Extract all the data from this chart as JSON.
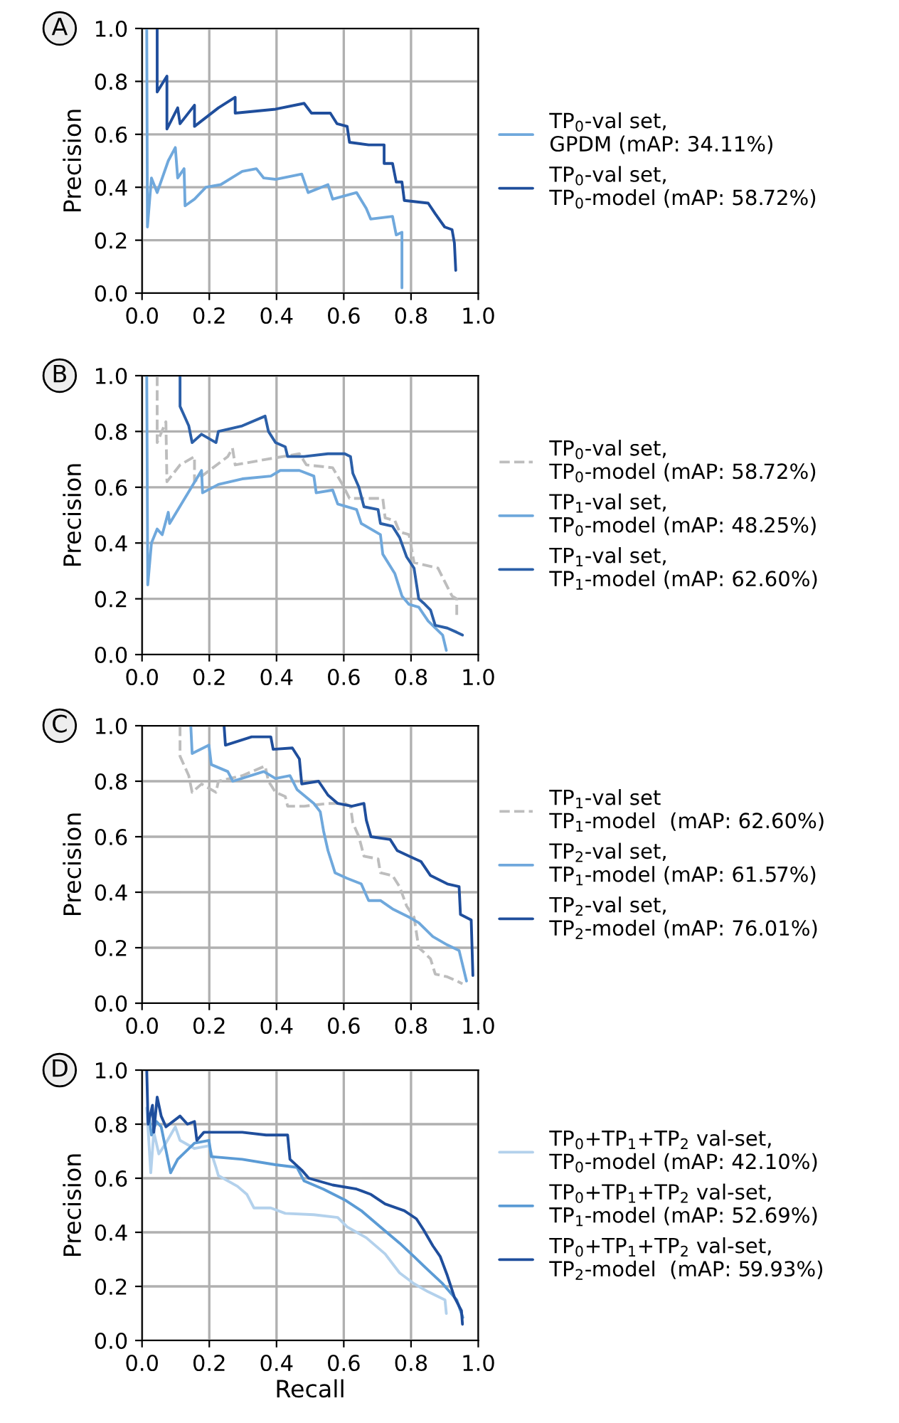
{
  "chart_data": [
    {
      "type": "line",
      "ylabel": "Precision",
      "annotations": [
        "A"
      ],
      "xlim": [
        0,
        1
      ],
      "ylim": [
        0,
        1
      ],
      "xticks": [
        {
          "value": 0,
          "label": "0.0"
        },
        {
          "value": 0.2,
          "label": "0.2"
        },
        {
          "value": 0.4,
          "label": "0.4"
        },
        {
          "value": 0.6,
          "label": "0.6"
        },
        {
          "value": 0.8,
          "label": "0.8"
        },
        {
          "value": 1,
          "label": "1.0"
        }
      ],
      "yticks": [
        {
          "value": 0,
          "label": "0.0"
        },
        {
          "value": 0.2,
          "label": "0.2"
        },
        {
          "value": 0.4,
          "label": "0.4"
        },
        {
          "value": 0.6,
          "label": "0.6"
        },
        {
          "value": 0.8,
          "label": "0.8"
        },
        {
          "value": 1,
          "label": "1.0"
        }
      ],
      "grid": true,
      "legend": "right",
      "series": [
        {
          "name": "TP$_{0}$-val set,\nGPDM (mAP: 34.11%)",
          "color": "#6fa8dc",
          "x": [
            0.014,
            0.016,
            0.028,
            0.045,
            0.078,
            0.099,
            0.106,
            0.125,
            0.128,
            0.156,
            0.19,
            0.234,
            0.298,
            0.34,
            0.362,
            0.397,
            0.475,
            0.494,
            0.553,
            0.567,
            0.638,
            0.667,
            0.68,
            0.745,
            0.756,
            0.773,
            0.773
          ],
          "values": [
            1.0,
            0.25,
            0.435,
            0.38,
            0.5,
            0.55,
            0.435,
            0.47,
            0.33,
            0.355,
            0.4,
            0.41,
            0.46,
            0.47,
            0.435,
            0.43,
            0.45,
            0.38,
            0.41,
            0.355,
            0.38,
            0.32,
            0.28,
            0.29,
            0.22,
            0.23,
            0.02
          ]
        },
        {
          "name": "TP$_{0}$-val set,\nTP$_{0}$-model (mAP: 58.72%)",
          "color": "#1f4e9c",
          "x": [
            0.045,
            0.045,
            0.074,
            0.074,
            0.106,
            0.113,
            0.156,
            0.156,
            0.227,
            0.277,
            0.277,
            0.397,
            0.482,
            0.504,
            0.56,
            0.58,
            0.61,
            0.617,
            0.674,
            0.72,
            0.72,
            0.745,
            0.756,
            0.773,
            0.78,
            0.851,
            0.872,
            0.9,
            0.922,
            0.929,
            0.933
          ],
          "values": [
            1.0,
            0.76,
            0.82,
            0.62,
            0.7,
            0.64,
            0.71,
            0.63,
            0.7,
            0.74,
            0.68,
            0.695,
            0.717,
            0.68,
            0.68,
            0.64,
            0.63,
            0.57,
            0.56,
            0.56,
            0.49,
            0.49,
            0.42,
            0.42,
            0.35,
            0.34,
            0.3,
            0.25,
            0.24,
            0.19,
            0.086
          ]
        }
      ]
    },
    {
      "type": "line",
      "ylabel": "Precision",
      "annotations": [
        "B"
      ],
      "xlim": [
        0,
        1
      ],
      "ylim": [
        0,
        1
      ],
      "xticks": [
        {
          "value": 0,
          "label": "0.0"
        },
        {
          "value": 0.2,
          "label": "0.2"
        },
        {
          "value": 0.4,
          "label": "0.4"
        },
        {
          "value": 0.6,
          "label": "0.6"
        },
        {
          "value": 0.8,
          "label": "0.8"
        },
        {
          "value": 1,
          "label": "1.0"
        }
      ],
      "yticks": [
        {
          "value": 0,
          "label": "0.0"
        },
        {
          "value": 0.2,
          "label": "0.2"
        },
        {
          "value": 0.4,
          "label": "0.4"
        },
        {
          "value": 0.6,
          "label": "0.6"
        },
        {
          "value": 0.8,
          "label": "0.8"
        },
        {
          "value": 1,
          "label": "1.0"
        }
      ],
      "grid": true,
      "legend": "right",
      "series": [
        {
          "name": "TP$_{0}$-val set,\nTP$_{0}$-model (mAP: 58.72%)",
          "color": "#bdbdbd",
          "line_style": "dashed",
          "x": [
            0.045,
            0.045,
            0.071,
            0.074,
            0.113,
            0.156,
            0.156,
            0.255,
            0.269,
            0.277,
            0.369,
            0.468,
            0.489,
            0.567,
            0.596,
            0.617,
            0.716,
            0.723,
            0.752,
            0.766,
            0.794,
            0.809,
            0.88,
            0.901,
            0.922,
            0.936,
            0.936
          ],
          "values": [
            1.0,
            0.76,
            0.835,
            0.62,
            0.68,
            0.71,
            0.62,
            0.71,
            0.74,
            0.68,
            0.7,
            0.72,
            0.68,
            0.67,
            0.61,
            0.56,
            0.56,
            0.49,
            0.48,
            0.44,
            0.43,
            0.33,
            0.31,
            0.26,
            0.21,
            0.2,
            0.13
          ]
        },
        {
          "name": "TP$_{1}$-val set,\nTP$_{0}$-model (mAP: 48.25%)",
          "color": "#6fa8dc",
          "x": [
            0.014,
            0.017,
            0.028,
            0.045,
            0.06,
            0.078,
            0.082,
            0.142,
            0.177,
            0.18,
            0.227,
            0.298,
            0.383,
            0.411,
            0.468,
            0.511,
            0.518,
            0.567,
            0.582,
            0.638,
            0.652,
            0.709,
            0.716,
            0.752,
            0.773,
            0.794,
            0.823,
            0.851,
            0.894,
            0.905
          ],
          "values": [
            1.0,
            0.25,
            0.4,
            0.45,
            0.43,
            0.51,
            0.47,
            0.59,
            0.66,
            0.58,
            0.61,
            0.63,
            0.64,
            0.66,
            0.66,
            0.64,
            0.58,
            0.59,
            0.54,
            0.52,
            0.47,
            0.43,
            0.36,
            0.29,
            0.21,
            0.18,
            0.17,
            0.12,
            0.07,
            0.015
          ]
        },
        {
          "name": "TP$_{1}$-val set,\nTP$_{1}$-model (mAP: 62.60%)",
          "color": "#2b5fa8",
          "x": [
            0.113,
            0.113,
            0.139,
            0.149,
            0.177,
            0.22,
            0.227,
            0.298,
            0.366,
            0.376,
            0.397,
            0.426,
            0.433,
            0.482,
            0.553,
            0.603,
            0.62,
            0.627,
            0.645,
            0.66,
            0.702,
            0.709,
            0.745,
            0.766,
            0.787,
            0.809,
            0.823,
            0.837,
            0.858,
            0.872,
            0.908,
            0.936,
            0.953
          ],
          "values": [
            1.0,
            0.89,
            0.82,
            0.76,
            0.79,
            0.76,
            0.8,
            0.82,
            0.855,
            0.8,
            0.76,
            0.745,
            0.71,
            0.71,
            0.72,
            0.72,
            0.71,
            0.65,
            0.6,
            0.53,
            0.52,
            0.47,
            0.46,
            0.42,
            0.35,
            0.31,
            0.2,
            0.185,
            0.16,
            0.105,
            0.095,
            0.08,
            0.07
          ]
        }
      ]
    },
    {
      "type": "line",
      "ylabel": "Precision",
      "annotations": [
        "C"
      ],
      "xlim": [
        0,
        1
      ],
      "ylim": [
        0,
        1
      ],
      "xticks": [
        {
          "value": 0,
          "label": "0.0"
        },
        {
          "value": 0.2,
          "label": "0.2"
        },
        {
          "value": 0.4,
          "label": "0.4"
        },
        {
          "value": 0.6,
          "label": "0.6"
        },
        {
          "value": 0.8,
          "label": "0.8"
        },
        {
          "value": 1,
          "label": "1.0"
        }
      ],
      "yticks": [
        {
          "value": 0,
          "label": "0.0"
        },
        {
          "value": 0.2,
          "label": "0.2"
        },
        {
          "value": 0.4,
          "label": "0.4"
        },
        {
          "value": 0.6,
          "label": "0.6"
        },
        {
          "value": 0.8,
          "label": "0.8"
        },
        {
          "value": 1,
          "label": "1.0"
        }
      ],
      "grid": true,
      "legend": "right",
      "series": [
        {
          "name": "TP$_{1}$-val set\nTP$_{1}$-model  (mAP: 62.60%)",
          "color": "#bdbdbd",
          "line_style": "dashed",
          "x": [
            0.113,
            0.113,
            0.139,
            0.149,
            0.177,
            0.22,
            0.227,
            0.298,
            0.366,
            0.376,
            0.397,
            0.426,
            0.433,
            0.482,
            0.553,
            0.603,
            0.62,
            0.627,
            0.645,
            0.66,
            0.702,
            0.709,
            0.745,
            0.766,
            0.787,
            0.809,
            0.823,
            0.837,
            0.858,
            0.872,
            0.908,
            0.936,
            0.953
          ],
          "values": [
            1.0,
            0.89,
            0.82,
            0.76,
            0.79,
            0.76,
            0.8,
            0.82,
            0.855,
            0.8,
            0.76,
            0.745,
            0.71,
            0.71,
            0.72,
            0.72,
            0.71,
            0.65,
            0.6,
            0.53,
            0.52,
            0.47,
            0.46,
            0.42,
            0.35,
            0.31,
            0.2,
            0.185,
            0.16,
            0.105,
            0.095,
            0.08,
            0.07
          ]
        },
        {
          "name": "TP$_{2}$-val set,\nTP$_{1}$-model (mAP: 61.57%)",
          "color": "#6fa8dc",
          "x": [
            0.145,
            0.149,
            0.199,
            0.206,
            0.255,
            0.27,
            0.362,
            0.397,
            0.44,
            0.461,
            0.511,
            0.53,
            0.54,
            0.553,
            0.574,
            0.61,
            0.652,
            0.674,
            0.709,
            0.745,
            0.794,
            0.823,
            0.865,
            0.908,
            0.943,
            0.965
          ],
          "values": [
            1.0,
            0.9,
            0.93,
            0.86,
            0.835,
            0.8,
            0.835,
            0.81,
            0.82,
            0.77,
            0.72,
            0.69,
            0.62,
            0.55,
            0.47,
            0.45,
            0.43,
            0.37,
            0.37,
            0.34,
            0.31,
            0.29,
            0.24,
            0.21,
            0.19,
            0.08
          ]
        },
        {
          "name": "TP$_{2}$-val set,\nTP$_{2}$-model (mAP: 76.01%)",
          "color": "#1f4e9c",
          "x": [
            0.244,
            0.248,
            0.326,
            0.383,
            0.39,
            0.447,
            0.468,
            0.475,
            0.525,
            0.553,
            0.582,
            0.624,
            0.66,
            0.667,
            0.681,
            0.738,
            0.759,
            0.794,
            0.83,
            0.858,
            0.908,
            0.943,
            0.947,
            0.979,
            0.984
          ],
          "values": [
            1.0,
            0.93,
            0.96,
            0.96,
            0.915,
            0.92,
            0.88,
            0.79,
            0.8,
            0.75,
            0.72,
            0.71,
            0.72,
            0.66,
            0.6,
            0.59,
            0.55,
            0.53,
            0.51,
            0.46,
            0.43,
            0.42,
            0.32,
            0.3,
            0.1
          ]
        }
      ]
    },
    {
      "type": "line",
      "xlabel": "Recall",
      "ylabel": "Precision",
      "annotations": [
        "D"
      ],
      "xlim": [
        0,
        1
      ],
      "ylim": [
        0,
        1
      ],
      "xticks": [
        {
          "value": 0,
          "label": "0.0"
        },
        {
          "value": 0.2,
          "label": "0.2"
        },
        {
          "value": 0.4,
          "label": "0.4"
        },
        {
          "value": 0.6,
          "label": "0.6"
        },
        {
          "value": 0.8,
          "label": "0.8"
        },
        {
          "value": 1,
          "label": "1.0"
        }
      ],
      "yticks": [
        {
          "value": 0,
          "label": "0.0"
        },
        {
          "value": 0.2,
          "label": "0.2"
        },
        {
          "value": 0.4,
          "label": "0.4"
        },
        {
          "value": 0.6,
          "label": "0.6"
        },
        {
          "value": 0.8,
          "label": "0.8"
        },
        {
          "value": 1,
          "label": "1.0"
        }
      ],
      "grid": true,
      "legend": "right",
      "series": [
        {
          "name": "TP$_{0}$+TP$_{1}$+TP$_{2}$ val-set,\nTP$_{0}$-model (mAP: 42.10%)",
          "color": "#b3d1ec",
          "x": [
            0.014,
            0.026,
            0.035,
            0.05,
            0.071,
            0.099,
            0.113,
            0.156,
            0.199,
            0.22,
            0.227,
            0.284,
            0.312,
            0.333,
            0.383,
            0.426,
            0.511,
            0.582,
            0.61,
            0.667,
            0.723,
            0.766,
            0.809,
            0.851,
            0.901,
            0.905
          ],
          "values": [
            0.86,
            0.62,
            0.77,
            0.69,
            0.73,
            0.79,
            0.74,
            0.71,
            0.72,
            0.64,
            0.61,
            0.57,
            0.54,
            0.49,
            0.49,
            0.47,
            0.465,
            0.455,
            0.42,
            0.38,
            0.32,
            0.25,
            0.21,
            0.18,
            0.15,
            0.1
          ]
        },
        {
          "name": "TP$_{0}$+TP$_{1}$+TP$_{2}$ val-set,\nTP$_{1}$-model (mAP: 52.69%)",
          "color": "#5b9bd5",
          "x": [
            0.021,
            0.028,
            0.043,
            0.057,
            0.085,
            0.106,
            0.156,
            0.199,
            0.206,
            0.298,
            0.397,
            0.461,
            0.482,
            0.539,
            0.603,
            0.652,
            0.709,
            0.766,
            0.809,
            0.851,
            0.894,
            0.936,
            0.954
          ],
          "values": [
            0.83,
            0.76,
            0.81,
            0.79,
            0.62,
            0.67,
            0.73,
            0.74,
            0.68,
            0.67,
            0.65,
            0.64,
            0.59,
            0.56,
            0.52,
            0.48,
            0.42,
            0.36,
            0.31,
            0.26,
            0.21,
            0.15,
            0.085
          ]
        },
        {
          "name": "TP$_{0}$+TP$_{1}$+TP$_{2}$ val-set,\nTP$_{2}$-model  (mAP: 59.93%)",
          "color": "#1f4e9c",
          "x": [
            0.014,
            0.018,
            0.031,
            0.035,
            0.045,
            0.057,
            0.071,
            0.113,
            0.135,
            0.156,
            0.163,
            0.184,
            0.241,
            0.298,
            0.369,
            0.433,
            0.44,
            0.475,
            0.496,
            0.567,
            0.638,
            0.681,
            0.723,
            0.78,
            0.816,
            0.837,
            0.865,
            0.887,
            0.908,
            0.929,
            0.95,
            0.953
          ],
          "values": [
            1.0,
            0.8,
            0.87,
            0.77,
            0.9,
            0.83,
            0.79,
            0.83,
            0.8,
            0.81,
            0.74,
            0.77,
            0.77,
            0.77,
            0.76,
            0.76,
            0.67,
            0.63,
            0.6,
            0.575,
            0.56,
            0.54,
            0.505,
            0.48,
            0.45,
            0.41,
            0.35,
            0.31,
            0.24,
            0.16,
            0.11,
            0.06
          ]
        }
      ]
    }
  ]
}
